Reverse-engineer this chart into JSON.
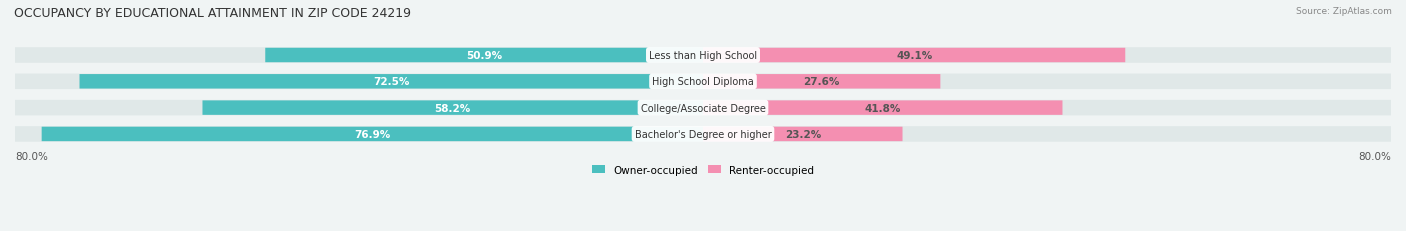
{
  "title": "OCCUPANCY BY EDUCATIONAL ATTAINMENT IN ZIP CODE 24219",
  "source": "Source: ZipAtlas.com",
  "categories": [
    "Less than High School",
    "High School Diploma",
    "College/Associate Degree",
    "Bachelor's Degree or higher"
  ],
  "owner_values": [
    50.9,
    72.5,
    58.2,
    76.9
  ],
  "renter_values": [
    49.1,
    27.6,
    41.8,
    23.2
  ],
  "owner_color": "#4BBFBF",
  "renter_color": "#F48FB1",
  "owner_label": "Owner-occupied",
  "renter_label": "Renter-occupied",
  "x_left_label": "80.0%",
  "x_right_label": "80.0%",
  "bg_color": "#f0f4f4",
  "bar_bg_color": "#e0e8e8",
  "title_fontsize": 9,
  "label_fontsize": 7.5,
  "bar_height": 0.55,
  "figsize": [
    14.06,
    2.32
  ],
  "dpi": 100
}
